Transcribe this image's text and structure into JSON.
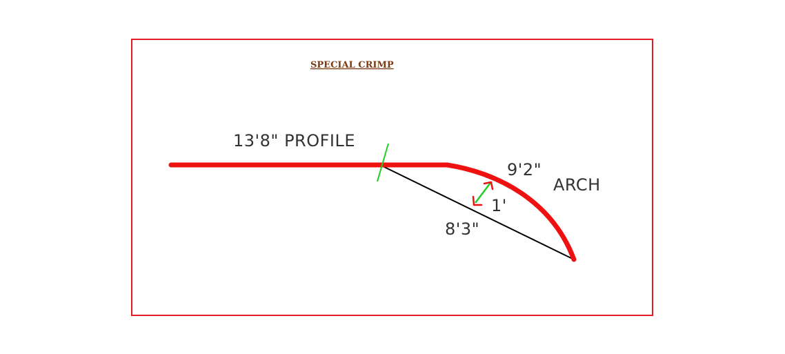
{
  "title": "SPECIAL CRIMP",
  "labels": {
    "profile": "13'8\" PROFILE",
    "arch_length": "9'2\"",
    "arch_word": "ARCH",
    "rise": "1'",
    "chord": "8'3\""
  },
  "colors": {
    "border": "#e31b23",
    "profile_line": "#ee1111",
    "chord_line": "#000000",
    "marker": "#22cc22",
    "title": "#7a3b12",
    "label": "#333333"
  }
}
